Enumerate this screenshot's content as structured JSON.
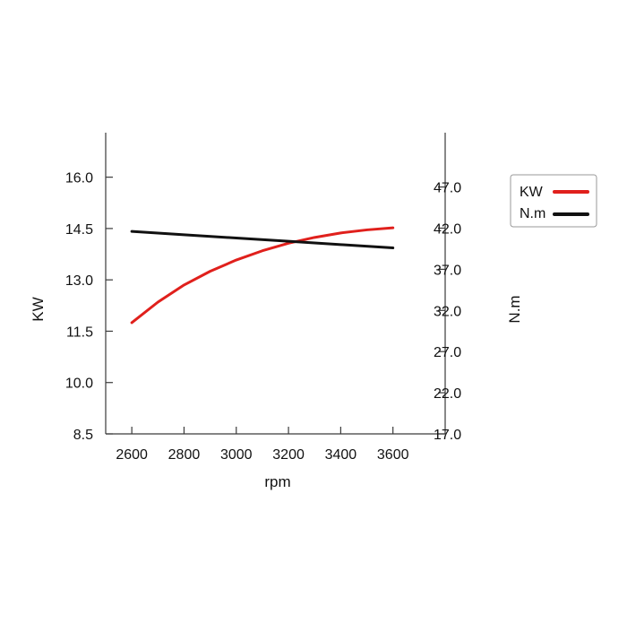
{
  "chart_data": {
    "type": "line",
    "title": "",
    "xlabel": "rpm",
    "ylabel_left": "KW",
    "ylabel_right": "N.m",
    "xlim": [
      2500,
      3800
    ],
    "ylim_left": [
      8.5,
      17.3
    ],
    "ylim_right": [
      17.0,
      53.6
    ],
    "x_ticks": [
      2600,
      2800,
      3000,
      3200,
      3400,
      3600
    ],
    "x_tick_labels": [
      "2600",
      "2800",
      "3000",
      "3200",
      "3400",
      "3600"
    ],
    "y_left_ticks": [
      8.5,
      10.0,
      11.5,
      13.0,
      14.5,
      16.0
    ],
    "y_left_tick_labels": [
      "8.5",
      "10.0",
      "11.5",
      "13.0",
      "14.5",
      "16.0"
    ],
    "y_right_ticks": [
      17.0,
      22.0,
      27.0,
      32.0,
      37.0,
      42.0,
      47.0
    ],
    "y_right_tick_labels": [
      "17.0",
      "22.0",
      "27.0",
      "32.0",
      "37.0",
      "42.0",
      "47.0"
    ],
    "grid": false,
    "legend_position": "top-right outside",
    "series": [
      {
        "name": "KW",
        "axis": "left",
        "color": "#e0201c",
        "x": [
          2600,
          2700,
          2800,
          2900,
          3000,
          3100,
          3200,
          3300,
          3400,
          3500,
          3600
        ],
        "values": [
          11.75,
          12.35,
          12.85,
          13.25,
          13.58,
          13.85,
          14.07,
          14.24,
          14.37,
          14.46,
          14.52
        ]
      },
      {
        "name": "N.m",
        "axis": "right",
        "color": "#111111",
        "x": [
          2600,
          2800,
          3000,
          3200,
          3400,
          3600
        ],
        "values": [
          41.6,
          41.2,
          40.8,
          40.4,
          40.0,
          39.6
        ]
      }
    ]
  }
}
